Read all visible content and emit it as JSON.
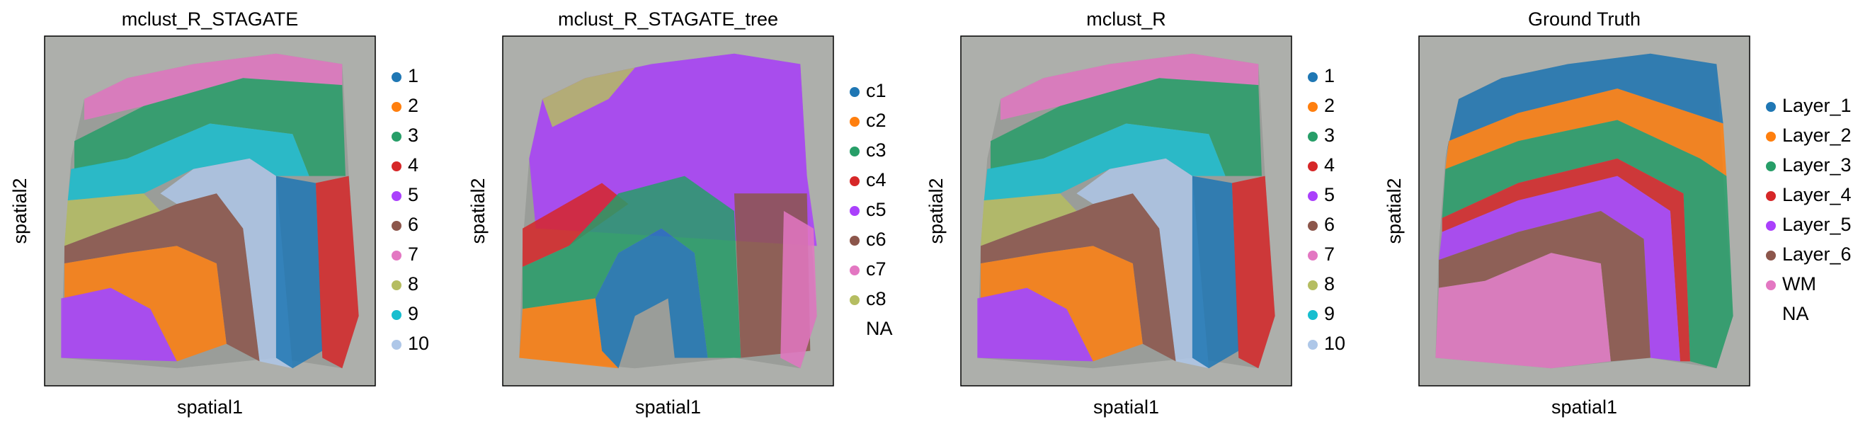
{
  "chart_data": [
    {
      "type": "spatial",
      "title": "mclust_R_STAGATE",
      "x_label": "spatial1",
      "y_label": "spatial2",
      "series": [
        {
          "name": "1",
          "color": "#1f77b4"
        },
        {
          "name": "2",
          "color": "#ff7f0e"
        },
        {
          "name": "3",
          "color": "#279e68"
        },
        {
          "name": "4",
          "color": "#d62728"
        },
        {
          "name": "5",
          "color": "#aa40fc"
        },
        {
          "name": "6",
          "color": "#8c564b"
        },
        {
          "name": "7",
          "color": "#e377c2"
        },
        {
          "name": "8",
          "color": "#b5bd61"
        },
        {
          "name": "9",
          "color": "#17becf"
        },
        {
          "name": "10",
          "color": "#aec7e8"
        }
      ]
    },
    {
      "type": "spatial",
      "title": "mclust_R_STAGATE_tree",
      "x_label": "spatial1",
      "y_label": "spatial2",
      "series": [
        {
          "name": "c1",
          "color": "#1f77b4"
        },
        {
          "name": "c2",
          "color": "#ff7f0e"
        },
        {
          "name": "c3",
          "color": "#279e68"
        },
        {
          "name": "c4",
          "color": "#d62728"
        },
        {
          "name": "c5",
          "color": "#aa40fc"
        },
        {
          "name": "c6",
          "color": "#8c564b"
        },
        {
          "name": "c7",
          "color": "#e377c2"
        },
        {
          "name": "c8",
          "color": "#b5bd61"
        },
        {
          "name": "NA"
        }
      ]
    },
    {
      "type": "spatial",
      "title": "mclust_R",
      "x_label": "spatial1",
      "y_label": "spatial2",
      "series": [
        {
          "name": "1",
          "color": "#1f77b4"
        },
        {
          "name": "2",
          "color": "#ff7f0e"
        },
        {
          "name": "3",
          "color": "#279e68"
        },
        {
          "name": "4",
          "color": "#d62728"
        },
        {
          "name": "5",
          "color": "#aa40fc"
        },
        {
          "name": "6",
          "color": "#8c564b"
        },
        {
          "name": "7",
          "color": "#e377c2"
        },
        {
          "name": "8",
          "color": "#b5bd61"
        },
        {
          "name": "9",
          "color": "#17becf"
        },
        {
          "name": "10",
          "color": "#aec7e8"
        }
      ]
    },
    {
      "type": "spatial",
      "title": "Ground Truth",
      "x_label": "spatial1",
      "y_label": "spatial2",
      "series": [
        {
          "name": "Layer_1",
          "color": "#1f77b4"
        },
        {
          "name": "Layer_2",
          "color": "#ff7f0e"
        },
        {
          "name": "Layer_3",
          "color": "#279e68"
        },
        {
          "name": "Layer_4",
          "color": "#d62728"
        },
        {
          "name": "Layer_5",
          "color": "#aa40fc"
        },
        {
          "name": "Layer_6",
          "color": "#8c564b"
        },
        {
          "name": "WM",
          "color": "#e377c2"
        },
        {
          "name": "NA"
        }
      ]
    }
  ]
}
